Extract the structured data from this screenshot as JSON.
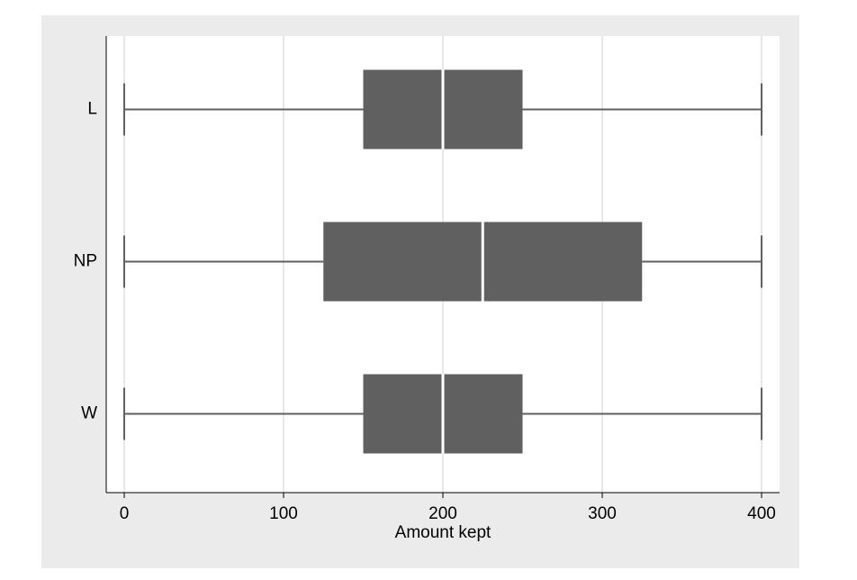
{
  "chart_data": {
    "type": "box",
    "orientation": "horizontal",
    "x_label": "Amount kept",
    "categories": [
      "L",
      "NP",
      "W"
    ],
    "min": [
      0,
      0,
      0
    ],
    "q1": [
      150,
      125,
      150
    ],
    "median": [
      200,
      225,
      200
    ],
    "q3": [
      250,
      325,
      250
    ],
    "max": [
      400,
      400,
      400
    ],
    "color": "#606060",
    "median_color": "#ffffff",
    "xlim": [
      -11.3,
      411.3
    ],
    "xticks": [
      0,
      100,
      200,
      300,
      400
    ],
    "grid": true
  }
}
